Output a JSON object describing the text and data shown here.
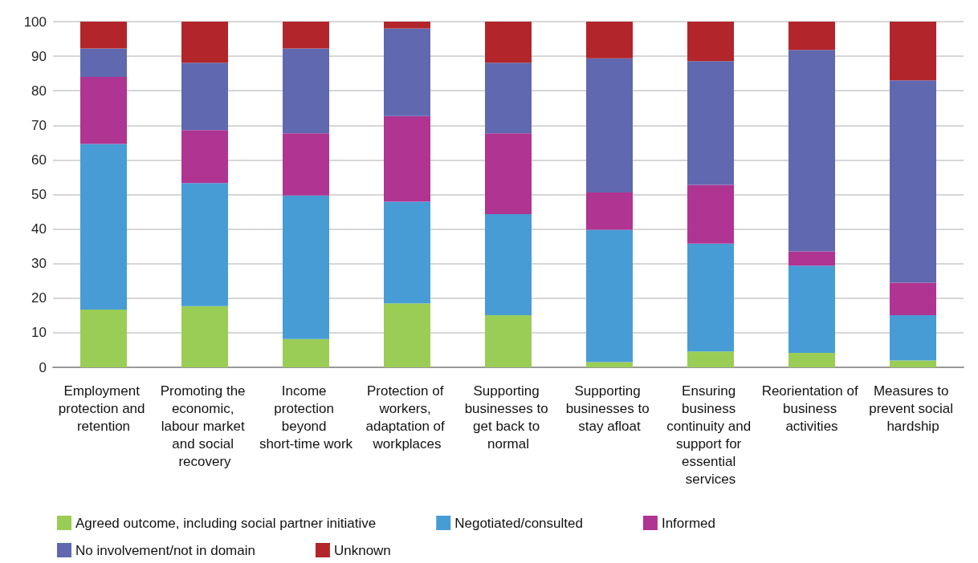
{
  "chart_data": {
    "type": "bar",
    "stacked": true,
    "categories": [
      "Employment protection and retention",
      "Promoting the economic, labour market and social recovery",
      "Income protection beyond short-time work",
      "Protection of workers, adaptation of workplaces",
      "Supporting businesses to get back to normal",
      "Supporting businesses to stay afloat",
      "Ensuring business continuity and support for essential services",
      "Reorientation of business activities",
      "Measures to prevent social hardship"
    ],
    "series": [
      {
        "name": "Agreed outcome, including social partner initiative",
        "color": "#9acd55",
        "values": [
          16.7,
          17.7,
          8.2,
          18.5,
          15.1,
          1.5,
          4.6,
          4.2,
          2.0
        ]
      },
      {
        "name": "Negotiated/consulted",
        "color": "#479cd6",
        "values": [
          47.9,
          35.6,
          41.5,
          29.4,
          29.2,
          38.3,
          31.2,
          25.2,
          13.1
        ]
      },
      {
        "name": "Informed",
        "color": "#b03491",
        "values": [
          19.4,
          15.3,
          18.0,
          24.8,
          23.4,
          10.8,
          17.0,
          4.1,
          9.4
        ]
      },
      {
        "name": "No involvement/not in domain",
        "color": "#6068b0",
        "values": [
          8.2,
          19.5,
          24.5,
          25.3,
          20.4,
          38.8,
          35.8,
          58.3,
          58.5
        ]
      },
      {
        "name": "Unknown",
        "color": "#b2262b",
        "values": [
          7.8,
          11.9,
          7.8,
          2.0,
          11.9,
          10.6,
          11.4,
          8.2,
          17.0
        ]
      }
    ],
    "ylim": [
      0,
      100
    ],
    "yticks": [
      0,
      10,
      20,
      30,
      40,
      50,
      60,
      70,
      80,
      90,
      100
    ],
    "grid": "y",
    "legend": "bottom"
  }
}
